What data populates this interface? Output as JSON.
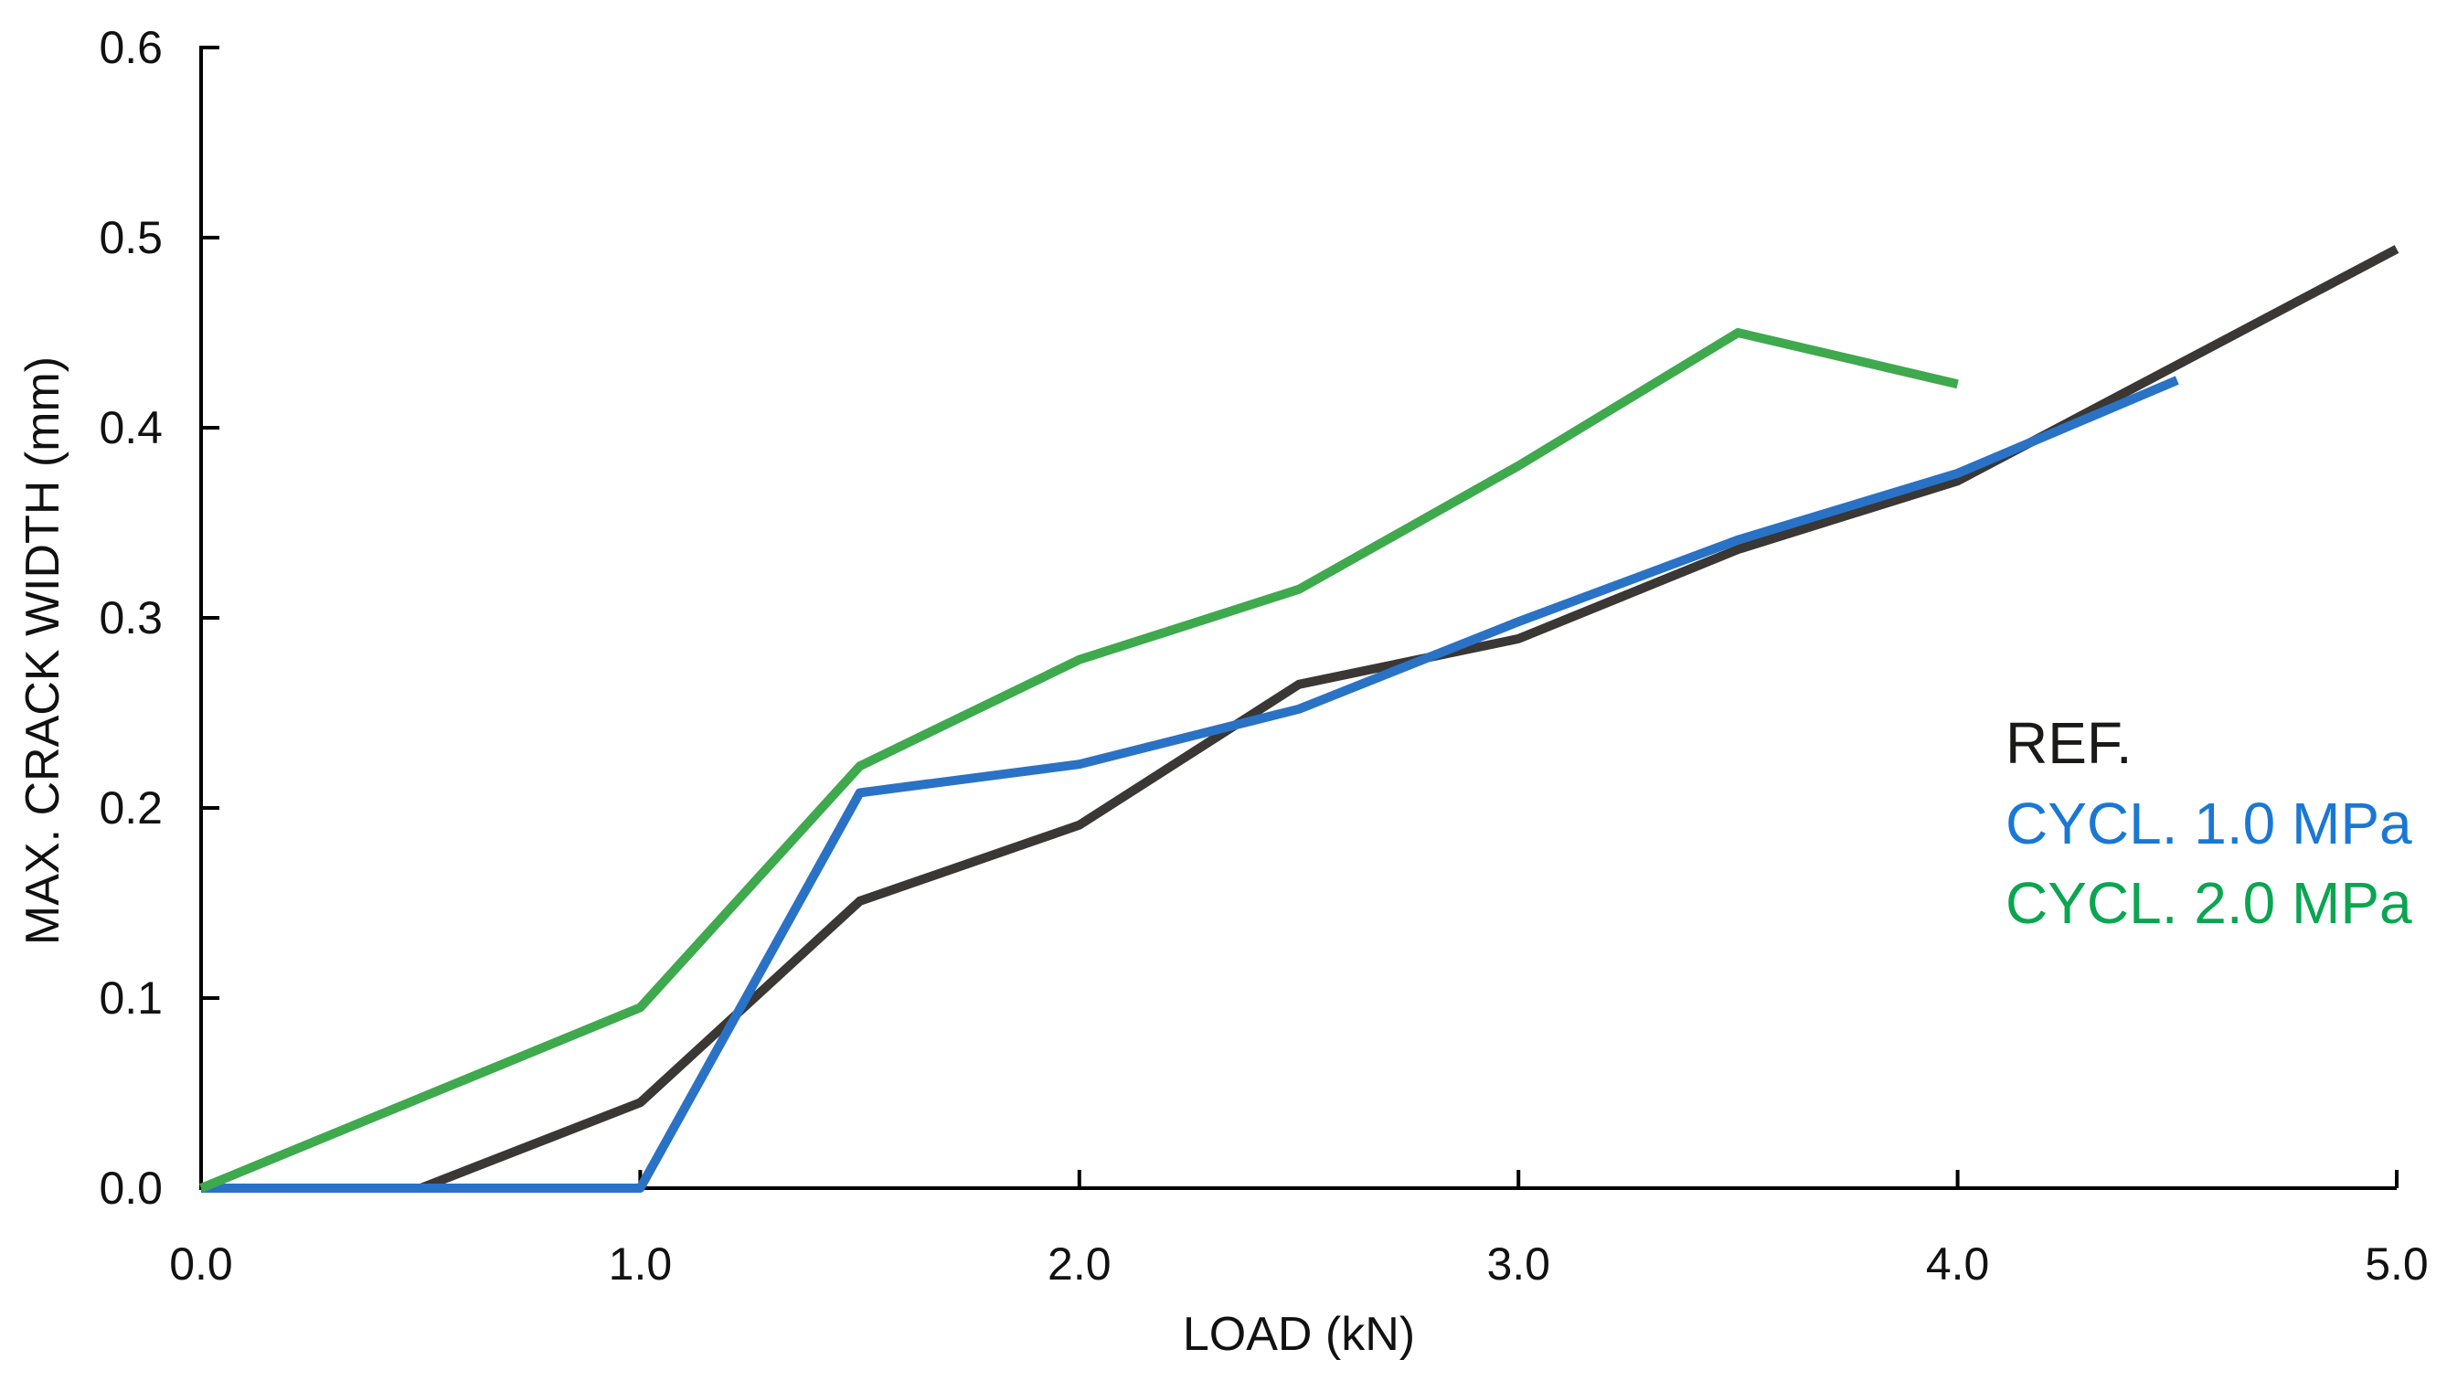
{
  "chart_data": {
    "type": "line",
    "title": "",
    "xlabel": "LOAD (kN)",
    "ylabel": "MAX. CRACK WIDTH (mm)",
    "xlim": [
      0.0,
      5.0
    ],
    "ylim": [
      0.0,
      0.6
    ],
    "grid": false,
    "background_color": "#ffffff",
    "axis_color": "#000000",
    "legend_position": "right-middle",
    "x_ticks": [
      {
        "value": 0.0,
        "label": "0.0"
      },
      {
        "value": 1.0,
        "label": "1.0"
      },
      {
        "value": 2.0,
        "label": "2.0"
      },
      {
        "value": 3.0,
        "label": "3.0"
      },
      {
        "value": 4.0,
        "label": "4.0"
      },
      {
        "value": 5.0,
        "label": "5.0"
      }
    ],
    "y_ticks": [
      {
        "value": 0.0,
        "label": "0.0"
      },
      {
        "value": 0.1,
        "label": "0.1"
      },
      {
        "value": 0.2,
        "label": "0.2"
      },
      {
        "value": 0.3,
        "label": "0.3"
      },
      {
        "value": 0.4,
        "label": "0.4"
      },
      {
        "value": 0.5,
        "label": "0.5"
      },
      {
        "value": 0.6,
        "label": "0.6"
      }
    ],
    "series": [
      {
        "name": "REF.",
        "color": "#3a3734",
        "legend_color": "#1b1917",
        "points": [
          [
            0.5,
            0.0
          ],
          [
            1.0,
            0.045
          ],
          [
            1.5,
            0.151
          ],
          [
            2.0,
            0.191
          ],
          [
            2.5,
            0.265
          ],
          [
            3.0,
            0.289
          ],
          [
            3.5,
            0.336
          ],
          [
            4.0,
            0.372
          ],
          [
            5.0,
            0.494
          ]
        ]
      },
      {
        "name": "CYCL. 1.0 MPa",
        "color": "#2a72c5",
        "legend_color": "#1a78d4",
        "points": [
          [
            0.0,
            0.0
          ],
          [
            1.0,
            0.0
          ],
          [
            1.5,
            0.208
          ],
          [
            2.0,
            0.223
          ],
          [
            2.5,
            0.252
          ],
          [
            3.0,
            0.298
          ],
          [
            3.5,
            0.341
          ],
          [
            4.0,
            0.376
          ],
          [
            4.5,
            0.425
          ]
        ]
      },
      {
        "name": "CYCL. 2.0 MPa",
        "color": "#3fa94d",
        "legend_color": "#0ba551",
        "points": [
          [
            0.0,
            0.0
          ],
          [
            1.0,
            0.095
          ],
          [
            1.5,
            0.222
          ],
          [
            2.0,
            0.278
          ],
          [
            2.5,
            0.315
          ],
          [
            3.0,
            0.38
          ],
          [
            3.5,
            0.45
          ],
          [
            4.0,
            0.423
          ]
        ]
      }
    ]
  }
}
